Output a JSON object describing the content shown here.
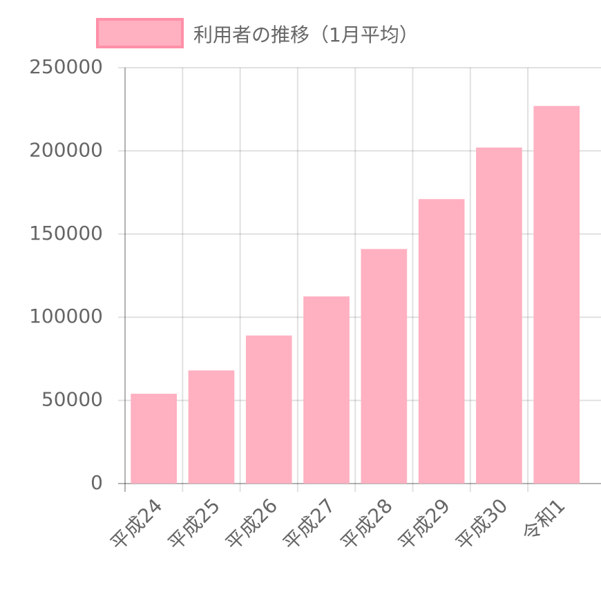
{
  "chart_data": {
    "type": "bar",
    "categories": [
      "平成24",
      "平成25",
      "平成26",
      "平成27",
      "平成28",
      "平成29",
      "平成30",
      "令和1"
    ],
    "series": [
      {
        "name": "利用者の推移（1月平均）",
        "color": "#ffb0c1",
        "border_color": "#ff90a8",
        "values": [
          54000,
          68000,
          89000,
          112500,
          141000,
          171000,
          202000,
          227000
        ]
      }
    ],
    "ylim": [
      0,
      250000
    ],
    "yticks": [
      0,
      50000,
      100000,
      150000,
      200000,
      250000
    ],
    "grid": true,
    "legend": "top"
  }
}
